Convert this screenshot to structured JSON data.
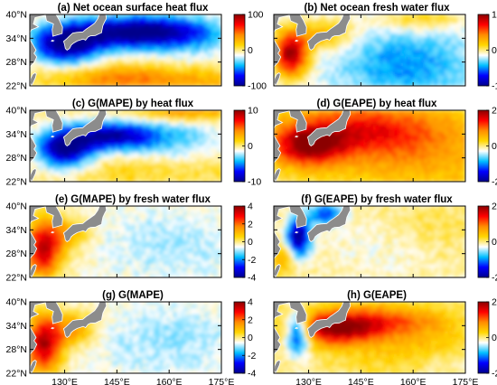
{
  "chart_data": {
    "type": "heatmap",
    "region": {
      "lon": [
        120,
        175
      ],
      "lat": [
        22,
        40
      ]
    },
    "x_ticks": [
      "130°E",
      "145°E",
      "160°E",
      "175°E"
    ],
    "x_tick_values": [
      130,
      145,
      160,
      175
    ],
    "y_ticks": [
      "40°N",
      "34°N",
      "28°N",
      "22°N"
    ],
    "y_tick_values": [
      40,
      34,
      28,
      22
    ],
    "colormap": [
      "#00008b",
      "#0000ff",
      "#00bfff",
      "#ffffff",
      "#ffd700",
      "#ff8c00",
      "#ff0000",
      "#8b0000"
    ],
    "land_color": "#8c8c8c",
    "panels": [
      {
        "title": "(a) Net ocean surface heat flux",
        "pattern": "heat",
        "cb_range": [
          -100,
          100
        ],
        "cb_ticks": [
          "100",
          "0",
          "-100"
        ]
      },
      {
        "title": "(b) Net ocean fresh water flux",
        "pattern": "fresh",
        "cb_range": [
          -1,
          1
        ],
        "cb_ticks": [
          "1",
          "0",
          "-1"
        ]
      },
      {
        "title": "(c) G(MAPE) by heat flux",
        "pattern": "mape_heat",
        "cb_range": [
          -10,
          10
        ],
        "cb_ticks": [
          "10",
          "0",
          "-10"
        ]
      },
      {
        "title": "(d) G(EAPE) by heat flux",
        "pattern": "eape_heat",
        "cb_range": [
          -2,
          2
        ],
        "cb_ticks": [
          "2",
          "0",
          "-2"
        ]
      },
      {
        "title": "(e) G(MAPE) by fresh water flux",
        "pattern": "mape_fresh",
        "cb_range": [
          -4,
          4
        ],
        "cb_ticks": [
          "4",
          "2",
          "0",
          "-2",
          "-4"
        ]
      },
      {
        "title": "(f) G(EAPE) by fresh water flux",
        "pattern": "eape_fresh",
        "cb_range": [
          -2,
          2
        ],
        "cb_ticks": [
          "2",
          "0",
          "-2"
        ]
      },
      {
        "title": "(g) G(MAPE)",
        "pattern": "mape",
        "cb_range": [
          -4,
          4
        ],
        "cb_ticks": [
          "4",
          "2",
          "0",
          "-2",
          "-4"
        ]
      },
      {
        "title": "(h) G(EAPE)",
        "pattern": "eape",
        "cb_range": [
          -2,
          2
        ],
        "cb_ticks": [
          "2",
          "0",
          "-2"
        ]
      }
    ]
  }
}
